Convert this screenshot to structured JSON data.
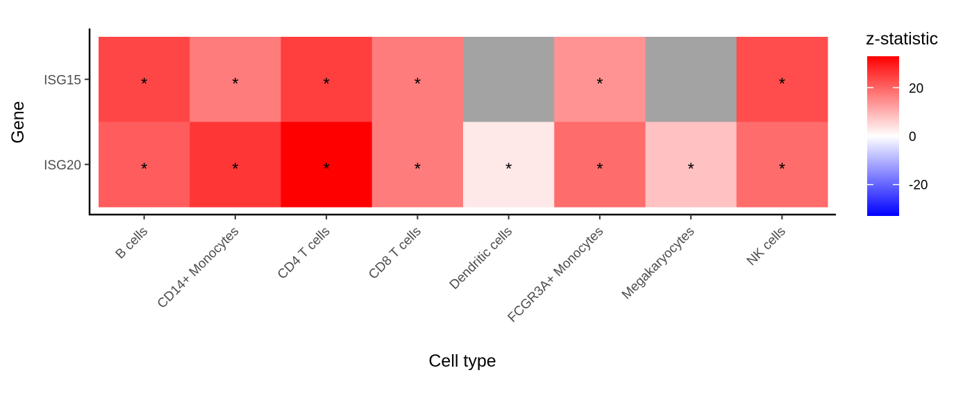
{
  "chart_data": {
    "type": "heatmap",
    "title": "",
    "xlabel": "Cell type",
    "ylabel": "Gene",
    "x_categories": [
      "B cells",
      "CD14+ Monocytes",
      "CD4 T cells",
      "CD8 T cells",
      "Dendritic cells",
      "FCGR3A+ Monocytes",
      "Megakaryocytes",
      "NK cells"
    ],
    "y_categories": [
      "ISG15",
      "ISG20"
    ],
    "cells": [
      {
        "gene": "ISG15",
        "cell_type": "B cells",
        "z": 24,
        "significant": true
      },
      {
        "gene": "ISG15",
        "cell_type": "CD14+ Monocytes",
        "z": 17,
        "significant": true
      },
      {
        "gene": "ISG15",
        "cell_type": "CD4 T cells",
        "z": 25,
        "significant": true
      },
      {
        "gene": "ISG15",
        "cell_type": "CD8 T cells",
        "z": 17,
        "significant": true
      },
      {
        "gene": "ISG15",
        "cell_type": "Dendritic cells",
        "z": null,
        "significant": false
      },
      {
        "gene": "ISG15",
        "cell_type": "FCGR3A+ Monocytes",
        "z": 14,
        "significant": true
      },
      {
        "gene": "ISG15",
        "cell_type": "Megakaryocytes",
        "z": null,
        "significant": false
      },
      {
        "gene": "ISG15",
        "cell_type": "NK cells",
        "z": 23,
        "significant": true
      },
      {
        "gene": "ISG20",
        "cell_type": "B cells",
        "z": 21,
        "significant": true
      },
      {
        "gene": "ISG20",
        "cell_type": "CD14+ Monocytes",
        "z": 26,
        "significant": true
      },
      {
        "gene": "ISG20",
        "cell_type": "CD4 T cells",
        "z": 33,
        "significant": true
      },
      {
        "gene": "ISG20",
        "cell_type": "CD8 T cells",
        "z": 17,
        "significant": true
      },
      {
        "gene": "ISG20",
        "cell_type": "Dendritic cells",
        "z": 3,
        "significant": true
      },
      {
        "gene": "ISG20",
        "cell_type": "FCGR3A+ Monocytes",
        "z": 19,
        "significant": true
      },
      {
        "gene": "ISG20",
        "cell_type": "Megakaryocytes",
        "z": 8,
        "significant": true
      },
      {
        "gene": "ISG20",
        "cell_type": "NK cells",
        "z": 19,
        "significant": true
      }
    ],
    "significance_marker": "*",
    "na_color": "#a3a3a3",
    "legend": {
      "title": "z-statistic",
      "position": "right",
      "range": [
        -33,
        33
      ],
      "ticks": [
        20,
        0,
        -20
      ],
      "tick_labels": [
        "20",
        "0",
        "-20"
      ],
      "colors": {
        "low": "#0000ff",
        "mid": "#ffffff",
        "high": "#ff0000"
      }
    }
  }
}
